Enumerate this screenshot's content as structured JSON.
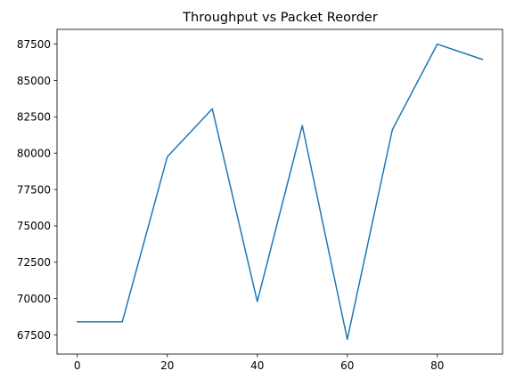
{
  "chart_data": {
    "type": "line",
    "title": "Throughput vs Packet Reorder",
    "xlabel": "",
    "ylabel": "",
    "x": [
      0,
      10,
      20,
      30,
      40,
      50,
      60,
      70,
      80,
      90
    ],
    "series": [
      {
        "values": [
          68400,
          68400,
          79750,
          83050,
          69800,
          81900,
          67200,
          81600,
          87500,
          86450
        ],
        "color": "#1f77b4"
      }
    ],
    "xlim": [
      -4.5,
      94.5
    ],
    "ylim": [
      66185,
      88515
    ],
    "x_ticks": [
      0,
      20,
      40,
      60,
      80
    ],
    "x_tick_labels": [
      "0",
      "20",
      "40",
      "60",
      "80"
    ],
    "y_ticks": [
      67500,
      70000,
      72500,
      75000,
      77500,
      80000,
      82500,
      85000,
      87500
    ],
    "y_tick_labels": [
      "67500",
      "70000",
      "72500",
      "75000",
      "77500",
      "80000",
      "82500",
      "85000",
      "87500"
    ],
    "grid": false,
    "legend": "none"
  }
}
